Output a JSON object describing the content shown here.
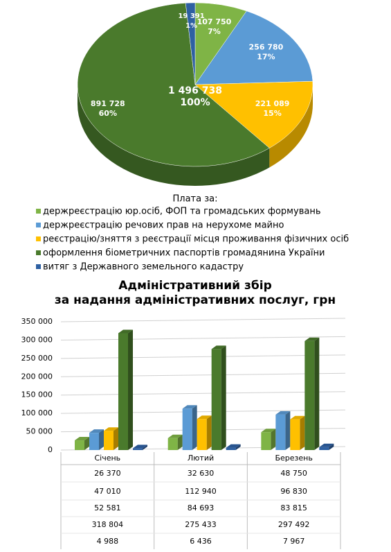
{
  "chart_data": [
    {
      "type": "pie3d",
      "legend_title": "Плата за:",
      "series": [
        {
          "name": "держреєстрацію юр.осіб, ФОП та громадських формувань",
          "color": "#7fb446",
          "value": 107750,
          "value_label": "107 750",
          "share": 7,
          "share_label": "7%"
        },
        {
          "name": "держреєстрацію речових прав на нерухоме майно",
          "color": "#5b9bd5",
          "value": 256780,
          "value_label": "256 780",
          "share": 17,
          "share_label": "17%"
        },
        {
          "name": "реєстрацію/зняття з реєстрації місця проживання фізичних осіб",
          "color": "#ffc000",
          "value": 221089,
          "value_label": "221 089",
          "share": 15,
          "share_label": "15%"
        },
        {
          "name": "оформлення біометричних паспортів громадянина України",
          "color": "#4a7a2c",
          "value": 891728,
          "value_label": "891 728",
          "share": 60,
          "share_label": "60%"
        },
        {
          "name": "витяг з Державного земельного кадастру",
          "color": "#2e60a2",
          "value": 19391,
          "value_label": "19 391",
          "share": 1,
          "share_label": "1%"
        }
      ],
      "total": {
        "value": 1496738,
        "label": "1 496 738"
      },
      "total_share": {
        "value": 100,
        "label": "100%"
      }
    },
    {
      "type": "bar3d",
      "title": [
        "Адміністративний збір",
        "за надання адміністративних послуг, грн"
      ],
      "categories": [
        "Січень",
        "Лютий",
        "Березень"
      ],
      "series": [
        {
          "color": "#7fb446",
          "values": [
            26370,
            32630,
            48750
          ],
          "value_labels": [
            "26 370",
            "32 630",
            "48 750"
          ]
        },
        {
          "color": "#5b9bd5",
          "values": [
            47010,
            112940,
            96830
          ],
          "value_labels": [
            "47 010",
            "112 940",
            "96 830"
          ]
        },
        {
          "color": "#ffc000",
          "values": [
            52581,
            84693,
            83815
          ],
          "value_labels": [
            "52 581",
            "84 693",
            "83 815"
          ]
        },
        {
          "color": "#4a7a2c",
          "values": [
            318804,
            275433,
            297492
          ],
          "value_labels": [
            "318 804",
            "275 433",
            "297 492"
          ]
        },
        {
          "color": "#2e60a2",
          "values": [
            4988,
            6436,
            7967
          ],
          "value_labels": [
            "4 988",
            "6 436",
            "7 967"
          ]
        }
      ],
      "ylim": [
        0,
        350000
      ],
      "yticks": [
        0,
        {
          "value": 50000,
          "label": "50 000"
        },
        {
          "value": 100000,
          "label": "100 000"
        },
        {
          "value": 150000,
          "label": "150 000"
        },
        {
          "value": 200000,
          "label": "200 000"
        },
        {
          "value": 250000,
          "label": "250 000"
        },
        {
          "value": 300000,
          "label": "300 000"
        },
        {
          "value": 350000,
          "label": "350 000"
        }
      ],
      "grid": true
    }
  ]
}
